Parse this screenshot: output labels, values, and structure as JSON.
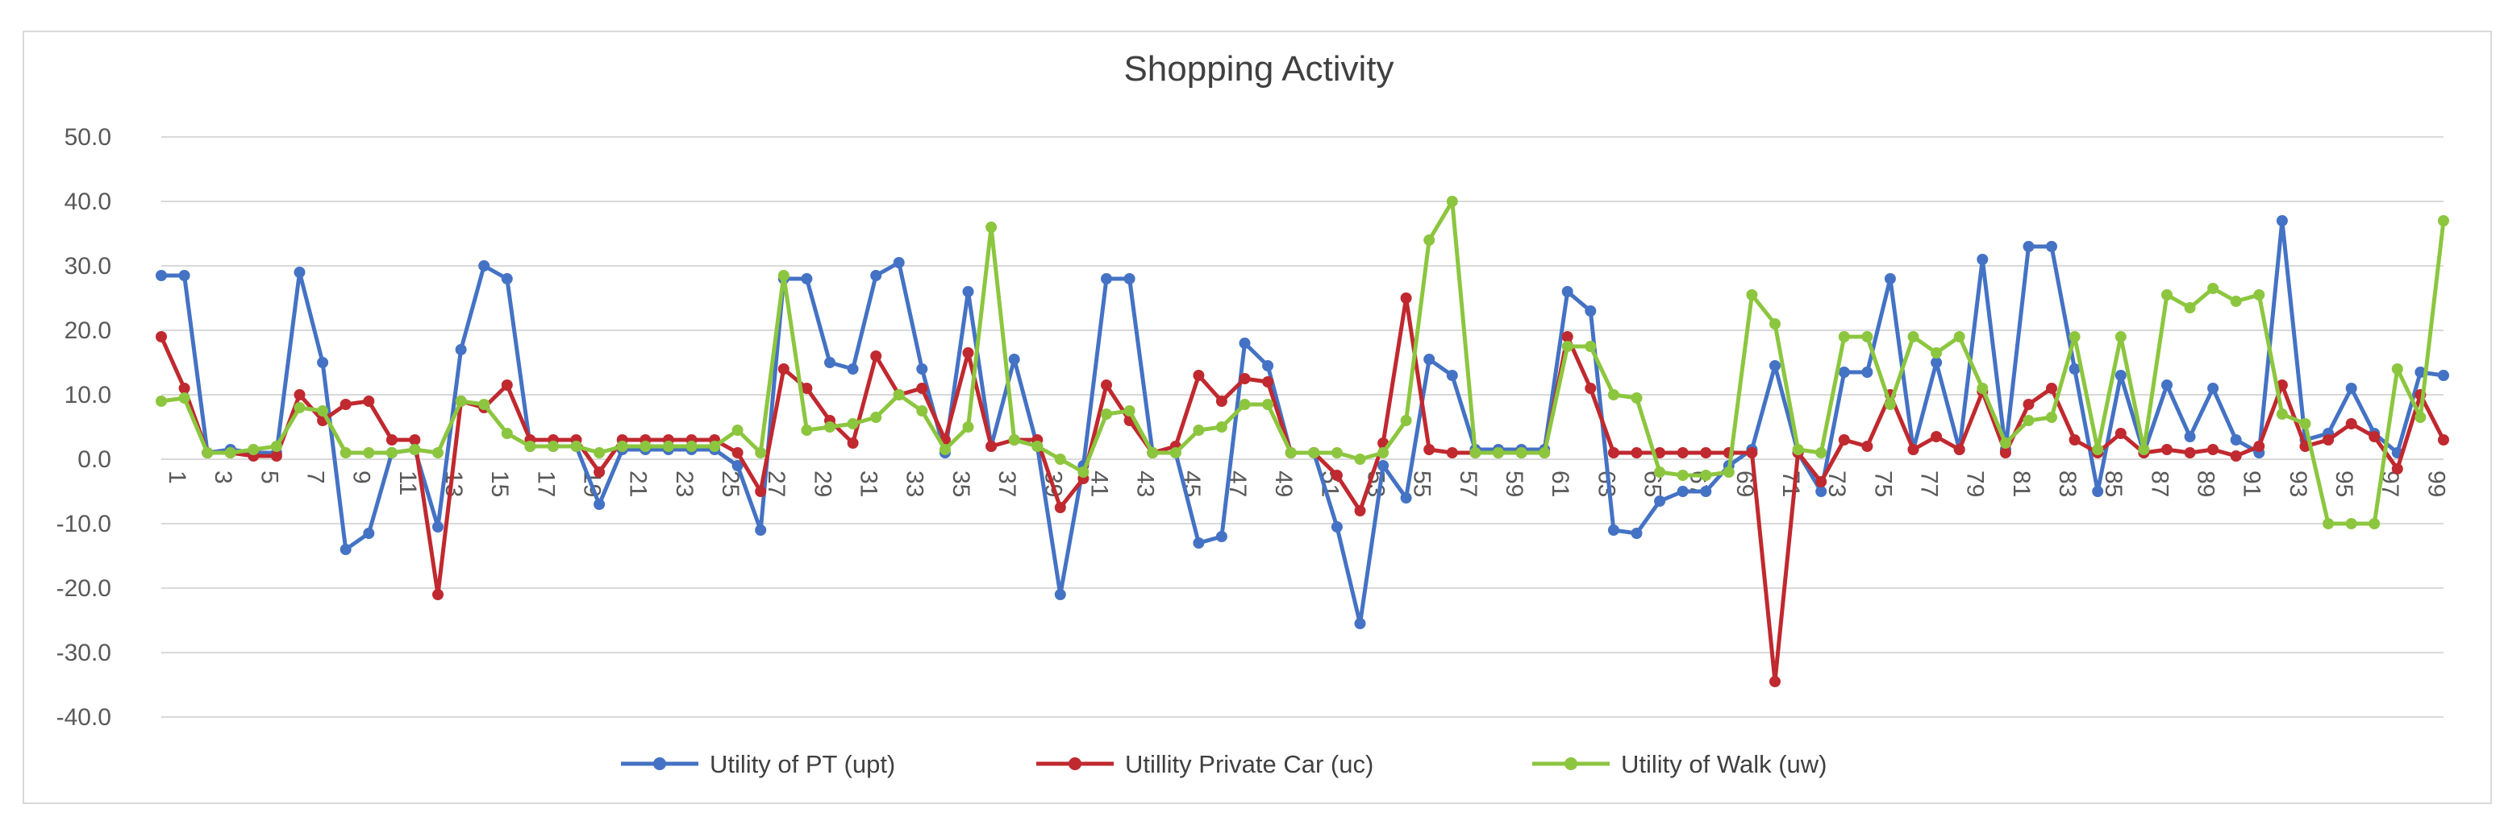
{
  "chart_data": {
    "type": "line",
    "title": "Shopping Activity",
    "xlabel": "",
    "ylabel": "",
    "ylim": [
      -40,
      50
    ],
    "yticks": [
      50,
      40,
      30,
      20,
      10,
      0,
      -10,
      -20,
      -30,
      -40
    ],
    "ytick_labels": [
      "50.0",
      "40.0",
      "30.0",
      "20.0",
      "10.0",
      "0.0",
      "-10.0",
      "-20.0",
      "-30.0",
      "-40.0"
    ],
    "x_start": 1,
    "x_end": 100,
    "xtick_labels": [
      "1",
      "3",
      "5",
      "7",
      "9",
      "11",
      "13",
      "15",
      "17",
      "19",
      "21",
      "23",
      "25",
      "27",
      "29",
      "31",
      "33",
      "35",
      "37",
      "39",
      "41",
      "43",
      "45",
      "47",
      "49",
      "51",
      "53",
      "55",
      "57",
      "59",
      "61",
      "63",
      "65",
      "67",
      "69",
      "71",
      "73",
      "75",
      "77",
      "79",
      "81",
      "83",
      "85",
      "87",
      "89",
      "91",
      "93",
      "95",
      "97",
      "99"
    ],
    "grid": true,
    "legend_position": "bottom",
    "series": [
      {
        "name": "Utility of PT (upt)",
        "color": "#4472c4",
        "values": [
          28.5,
          28.5,
          1,
          1.5,
          1,
          1,
          29,
          15,
          -14,
          -11.5,
          1,
          1.5,
          -10.5,
          17,
          30,
          28,
          2,
          2,
          2,
          -7,
          1.5,
          1.5,
          1.5,
          1.5,
          1.5,
          -1,
          -11,
          28,
          28,
          15,
          14,
          28.5,
          30.5,
          14,
          1,
          26,
          2,
          15.5,
          2,
          -21,
          -1,
          28,
          28,
          1,
          1,
          -13,
          -12,
          18,
          14.5,
          1,
          1,
          -10.5,
          -25.5,
          -1,
          -6,
          15.5,
          13,
          1.5,
          1.5,
          1.5,
          1.5,
          26,
          23,
          -11,
          -11.5,
          -6.5,
          -5,
          -5,
          -1,
          1.5,
          14.5,
          1,
          -5,
          13.5,
          13.5,
          28,
          1.5,
          15,
          1.5,
          31,
          1.5,
          33,
          33,
          14,
          -5,
          13,
          1,
          11.5,
          3.5,
          11,
          3,
          1,
          37,
          3,
          4,
          11,
          4,
          1,
          13.5,
          13
        ]
      },
      {
        "name": "Utillity Private Car (uc)",
        "color": "#c0292f",
        "values": [
          19,
          11,
          1,
          1,
          0.5,
          0.5,
          10,
          6,
          8.5,
          9,
          3,
          3,
          -21,
          9,
          8,
          11.5,
          3,
          3,
          3,
          -2,
          3,
          3,
          3,
          3,
          3,
          1,
          -5,
          14,
          11,
          6,
          2.5,
          16,
          10,
          11,
          3,
          16.5,
          2,
          3,
          3,
          -7.5,
          -3,
          11.5,
          6,
          1,
          2,
          13,
          9,
          12.5,
          12,
          1,
          1,
          -2.5,
          -8,
          2.5,
          25,
          1.5,
          1,
          1,
          1,
          1,
          1,
          19,
          11,
          1,
          1,
          1,
          1,
          1,
          1,
          1,
          -34.5,
          1,
          -3.5,
          3,
          2,
          10,
          1.5,
          3.5,
          1.5,
          10.5,
          1,
          8.5,
          11,
          3,
          1,
          4,
          1,
          1.5,
          1,
          1.5,
          0.5,
          2,
          11.5,
          2,
          3,
          5.5,
          3.5,
          -1.5,
          10,
          3
        ]
      },
      {
        "name": "Utility of Walk (uw)",
        "color": "#8cc63f",
        "values": [
          9,
          9.5,
          1,
          1,
          1.5,
          2,
          8,
          7.5,
          1,
          1,
          1,
          1.5,
          1,
          9,
          8.5,
          4,
          2,
          2,
          2,
          1,
          2,
          2,
          2,
          2,
          2,
          4.5,
          1,
          28.5,
          4.5,
          5,
          5.5,
          6.5,
          10,
          7.5,
          1.5,
          5,
          36,
          3,
          2,
          0,
          -2,
          7,
          7.5,
          1,
          1,
          4.5,
          5,
          8.5,
          8.5,
          1,
          1,
          1,
          0,
          1,
          6,
          34,
          40,
          1,
          1,
          1,
          1,
          17.5,
          17.5,
          10,
          9.5,
          -2,
          -2.5,
          -2.5,
          -2,
          25.5,
          21,
          1.5,
          1,
          19,
          19,
          8.5,
          19,
          16.5,
          19,
          11,
          2.5,
          6,
          6.5,
          19,
          1.5,
          19,
          1.5,
          25.5,
          23.5,
          26.5,
          24.5,
          25.5,
          7,
          5.5,
          -10,
          -10,
          -10,
          14,
          6.5,
          37
        ]
      }
    ]
  }
}
